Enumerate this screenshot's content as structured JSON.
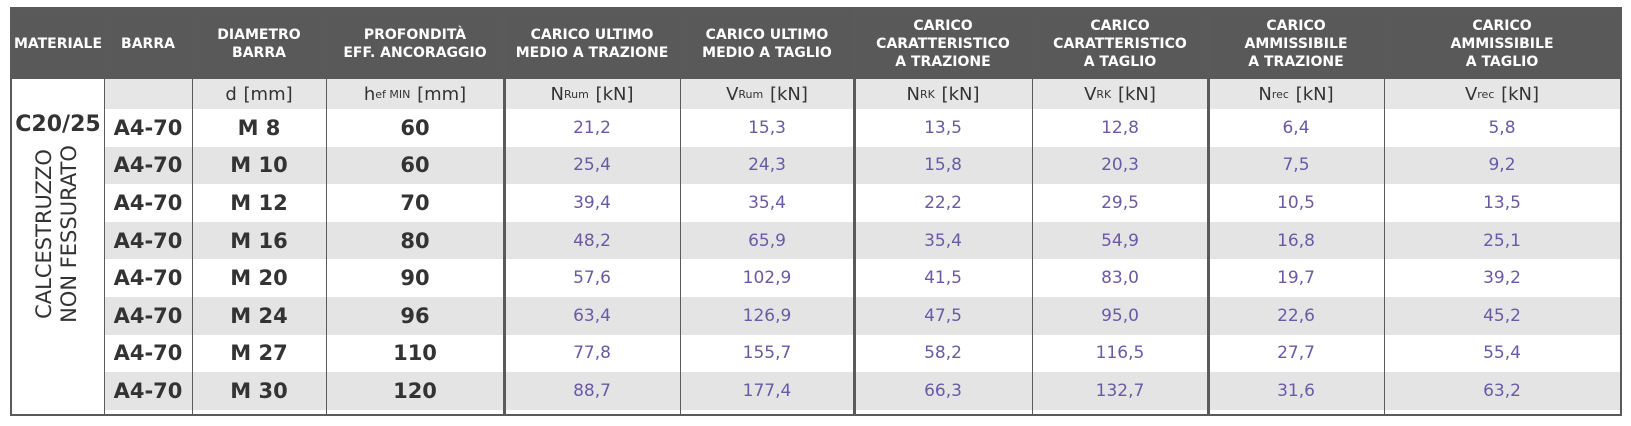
{
  "headers": [
    {
      "key": "materiale",
      "lines": [
        "MATERIALE"
      ]
    },
    {
      "key": "barra",
      "lines": [
        "BARRA"
      ]
    },
    {
      "key": "diametro",
      "lines": [
        "DIAMETRO",
        "BARRA"
      ]
    },
    {
      "key": "profondita",
      "lines": [
        "PROFONDITÀ",
        "EFF. ANCORAGGIO"
      ]
    },
    {
      "key": "nrum",
      "lines": [
        "CARICO ULTIMO",
        "MEDIO A TRAZIONE"
      ]
    },
    {
      "key": "vrum",
      "lines": [
        "CARICO ULTIMO",
        "MEDIO A TAGLIO"
      ]
    },
    {
      "key": "nrk",
      "lines": [
        "CARICO",
        "CARATTERISTICO",
        "A TRAZIONE"
      ]
    },
    {
      "key": "vrk",
      "lines": [
        "CARICO",
        "CARATTERISTICO",
        "A TAGLIO"
      ]
    },
    {
      "key": "nrec",
      "lines": [
        "CARICO",
        "AMMISSIBILE",
        "A TRAZIONE"
      ]
    },
    {
      "key": "vrec",
      "lines": [
        "CARICO",
        "AMMISSIBILE",
        "A TAGLIO"
      ]
    }
  ],
  "units": [
    {
      "main": "",
      "sub": "",
      "tail": ""
    },
    {
      "main": "",
      "sub": "",
      "tail": ""
    },
    {
      "main": "d",
      "sub": "",
      "tail": " [mm]"
    },
    {
      "main": "h",
      "sub": "ef MIN",
      "tail": " [mm]"
    },
    {
      "main": "N",
      "sub": "Rum",
      "tail": " [kN]"
    },
    {
      "main": "V",
      "sub": "Rum",
      "tail": " [kN]"
    },
    {
      "main": "N",
      "sub": "RK",
      "tail": " [kN]"
    },
    {
      "main": "V",
      "sub": "RK",
      "tail": " [kN]"
    },
    {
      "main": "N",
      "sub": "rec",
      "tail": " [kN]"
    },
    {
      "main": "V",
      "sub": "rec",
      "tail": " [kN]"
    }
  ],
  "material": {
    "grade": "C20/25",
    "description_lines": [
      "CALCESTRUZZO",
      "NON FESSURATO"
    ]
  },
  "rows": [
    {
      "barra": "A4-70",
      "diametro": "M 8",
      "hef": "60",
      "nrum": "21,2",
      "vrum": "15,3",
      "nrk": "13,5",
      "vrk": "12,8",
      "nrec": "6,4",
      "vrec": "5,8"
    },
    {
      "barra": "A4-70",
      "diametro": "M 10",
      "hef": "60",
      "nrum": "25,4",
      "vrum": "24,3",
      "nrk": "15,8",
      "vrk": "20,3",
      "nrec": "7,5",
      "vrec": "9,2"
    },
    {
      "barra": "A4-70",
      "diametro": "M 12",
      "hef": "70",
      "nrum": "39,4",
      "vrum": "35,4",
      "nrk": "22,2",
      "vrk": "29,5",
      "nrec": "10,5",
      "vrec": "13,5"
    },
    {
      "barra": "A4-70",
      "diametro": "M 16",
      "hef": "80",
      "nrum": "48,2",
      "vrum": "65,9",
      "nrk": "35,4",
      "vrk": "54,9",
      "nrec": "16,8",
      "vrec": "25,1"
    },
    {
      "barra": "A4-70",
      "diametro": "M 20",
      "hef": "90",
      "nrum": "57,6",
      "vrum": "102,9",
      "nrk": "41,5",
      "vrk": "83,0",
      "nrec": "19,7",
      "vrec": "39,2"
    },
    {
      "barra": "A4-70",
      "diametro": "M 24",
      "hef": "96",
      "nrum": "63,4",
      "vrum": "126,9",
      "nrk": "47,5",
      "vrk": "95,0",
      "nrec": "22,6",
      "vrec": "45,2"
    },
    {
      "barra": "A4-70",
      "diametro": "M 27",
      "hef": "110",
      "nrum": "77,8",
      "vrum": "155,7",
      "nrk": "58,2",
      "vrk": "116,5",
      "nrec": "27,7",
      "vrec": "55,4"
    },
    {
      "barra": "A4-70",
      "diametro": "M 30",
      "hef": "120",
      "nrum": "88,7",
      "vrum": "177,4",
      "nrk": "66,3",
      "vrk": "132,7",
      "nrec": "31,6",
      "vrec": "63,2"
    }
  ],
  "colors": {
    "header_bg": "#595959",
    "header_text": "#ffffff",
    "unit_row_bg": "#e6e6e6",
    "alt_row_bg": "#e4e4e4",
    "dark_text": "#333333",
    "value_text": "#6a5aa6"
  }
}
